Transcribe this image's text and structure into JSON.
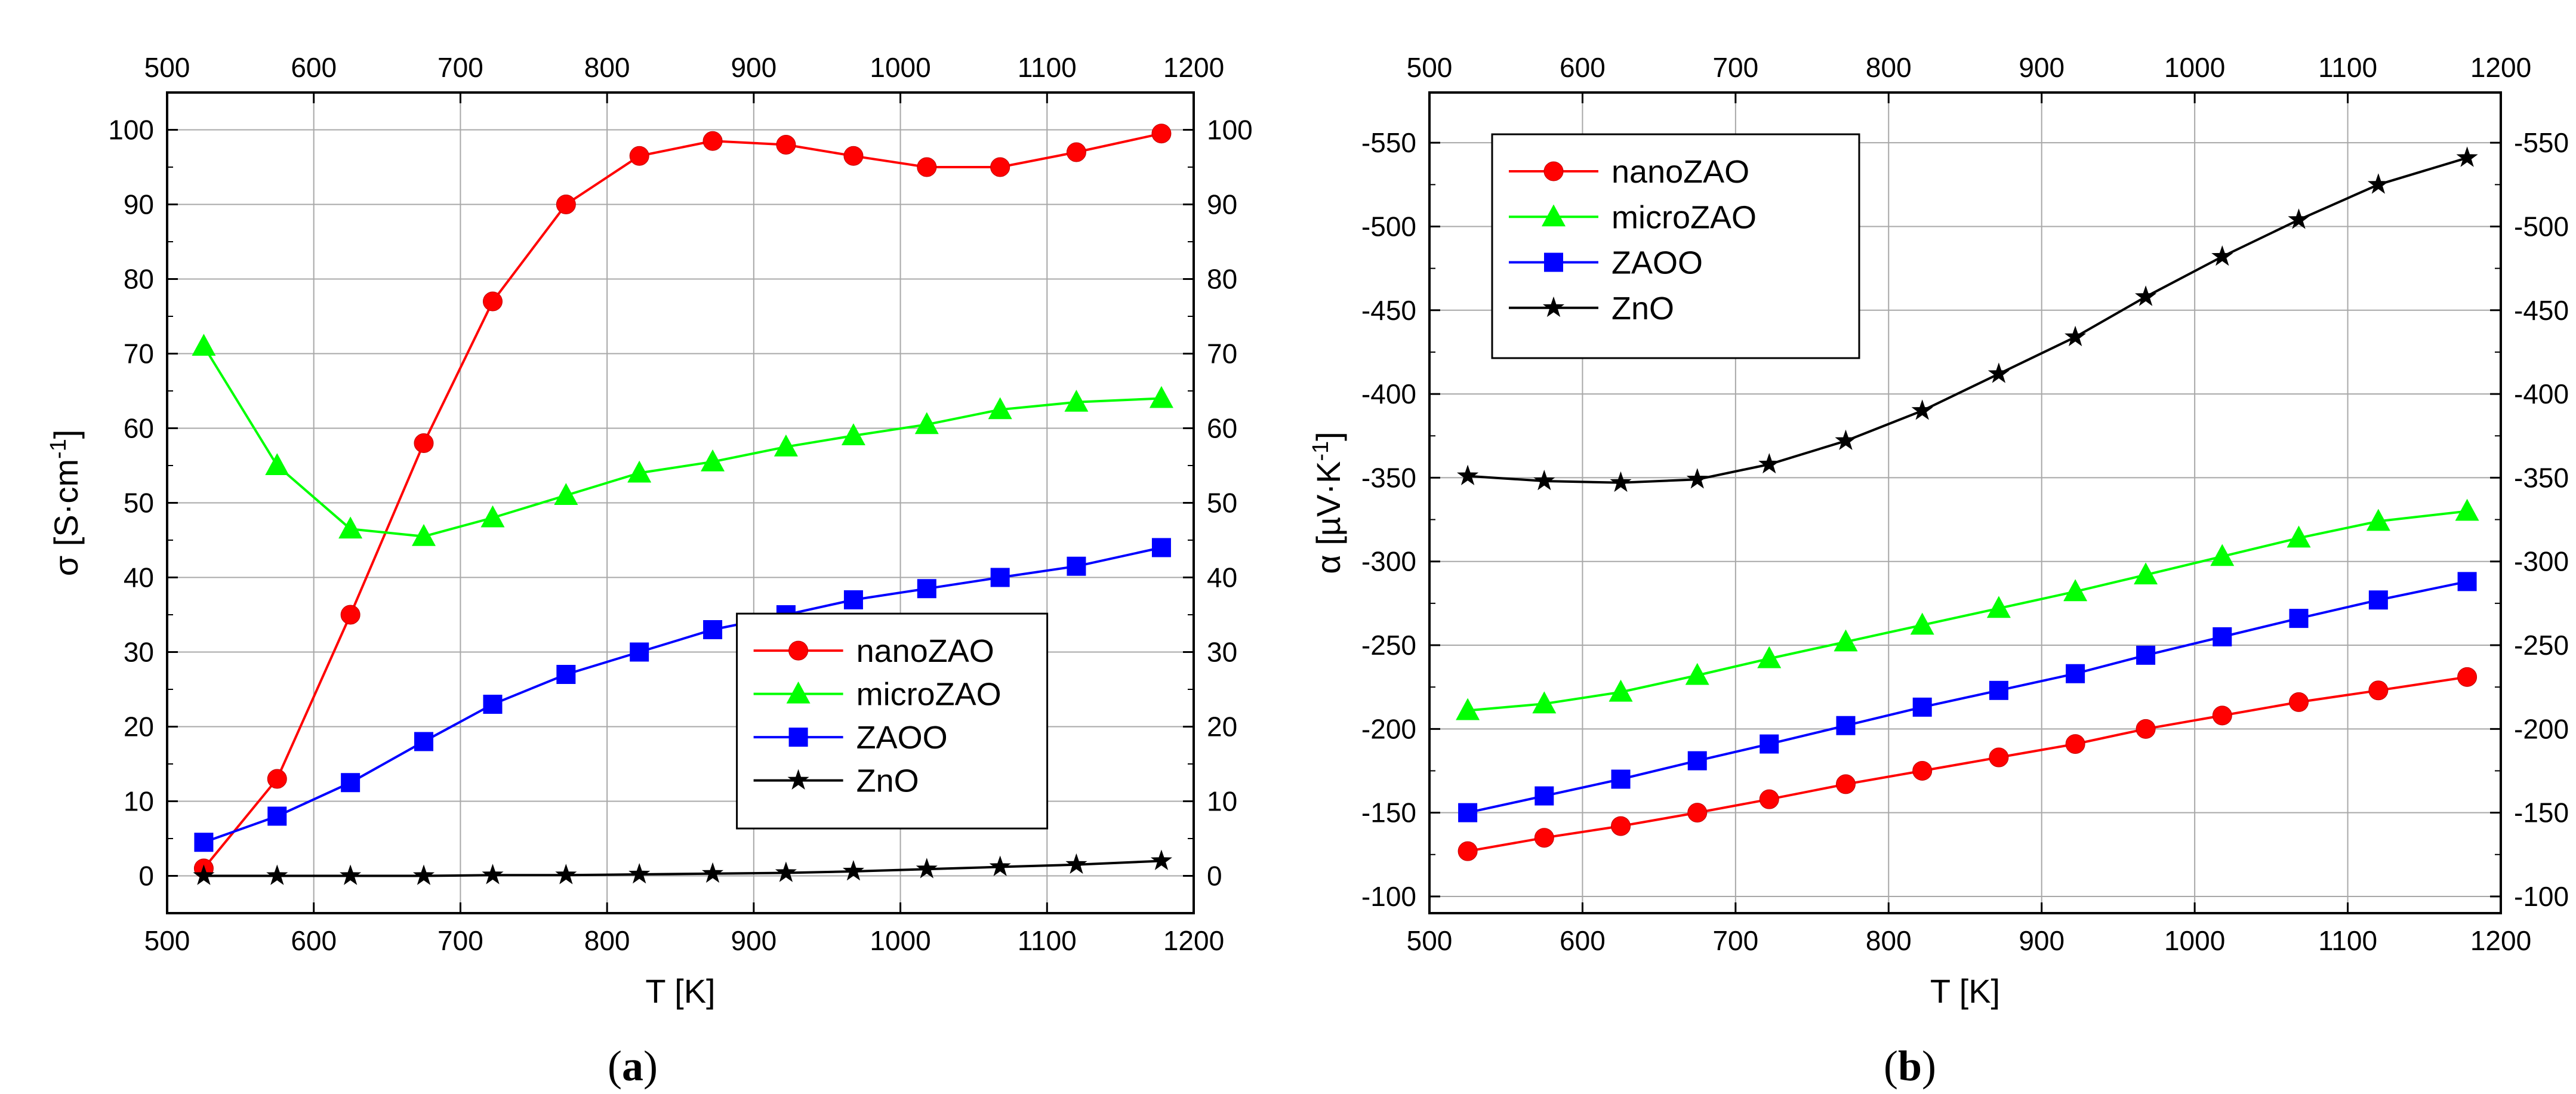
{
  "chart_data": [
    {
      "type": "line",
      "panel_label_parts": [
        "(",
        "a",
        ")"
      ],
      "xlabel": "T [K]",
      "ylabel_base": "σ [S·cm",
      "ylabel_sup": "-1",
      "ylabel_end": "]",
      "xlim": [
        500,
        1200
      ],
      "ylim": [
        -5,
        105
      ],
      "xticks": [
        "500",
        "600",
        "700",
        "800",
        "900",
        "1000",
        "1100",
        "1200"
      ],
      "yticks": [
        "0",
        "10",
        "20",
        "30",
        "40",
        "50",
        "60",
        "70",
        "80",
        "90",
        "100"
      ],
      "y_axis_inverted": false,
      "grid": true,
      "legend_position": "bottom-right",
      "series": [
        {
          "name": "nanoZAO",
          "color": "#ff0000",
          "marker": "circle",
          "x": [
            525,
            575,
            625,
            675,
            722,
            772,
            822,
            872,
            922,
            968,
            1018,
            1068,
            1120,
            1178
          ],
          "y": [
            1,
            13,
            35,
            58,
            77,
            90,
            96.5,
            98.5,
            98,
            96.5,
            95,
            95,
            97,
            99.5
          ]
        },
        {
          "name": "microZAO",
          "color": "#00ff00",
          "marker": "triangle",
          "x": [
            525,
            575,
            625,
            675,
            722,
            772,
            822,
            872,
            922,
            968,
            1018,
            1068,
            1120,
            1178
          ],
          "y": [
            71,
            55,
            46.5,
            45.5,
            48,
            51,
            54,
            55.5,
            57.5,
            59,
            60.5,
            62.5,
            63.5,
            64
          ]
        },
        {
          "name": "ZAOO",
          "color": "#0000ff",
          "marker": "square",
          "x": [
            525,
            575,
            625,
            675,
            722,
            772,
            822,
            872,
            922,
            968,
            1018,
            1068,
            1120,
            1178
          ],
          "y": [
            4.5,
            8,
            12.5,
            18,
            23,
            27,
            30,
            33,
            35,
            37,
            38.5,
            40,
            41.5,
            44
          ]
        },
        {
          "name": "ZnO",
          "color": "#000000",
          "marker": "star",
          "x": [
            525,
            575,
            625,
            675,
            722,
            772,
            822,
            872,
            922,
            968,
            1018,
            1068,
            1120,
            1178
          ],
          "y": [
            0,
            0,
            0,
            0,
            0.1,
            0.1,
            0.2,
            0.3,
            0.4,
            0.6,
            0.9,
            1.2,
            1.5,
            2
          ]
        }
      ]
    },
    {
      "type": "line",
      "panel_label_parts": [
        "(",
        "b",
        ")"
      ],
      "xlabel": "T [K]",
      "ylabel_base": "α [µV·K",
      "ylabel_sup": "-1",
      "ylabel_end": "]",
      "xlim": [
        500,
        1200
      ],
      "ylim": [
        -90,
        -580
      ],
      "xticks": [
        "500",
        "600",
        "700",
        "800",
        "900",
        "1000",
        "1100",
        "1200"
      ],
      "yticks": [
        "-100",
        "-150",
        "-200",
        "-250",
        "-300",
        "-350",
        "-400",
        "-450",
        "-500",
        "-550"
      ],
      "y_axis_inverted": true,
      "grid": true,
      "legend_position": "top-left",
      "series": [
        {
          "name": "nanoZAO",
          "color": "#ff0000",
          "marker": "circle",
          "x": [
            525,
            575,
            625,
            675,
            722,
            772,
            822,
            872,
            922,
            968,
            1018,
            1068,
            1120,
            1178
          ],
          "y": [
            -127,
            -135,
            -142,
            -150,
            -158,
            -167,
            -175,
            -183,
            -191,
            -200,
            -208,
            -216,
            -223,
            -231
          ]
        },
        {
          "name": "microZAO",
          "color": "#00ff00",
          "marker": "triangle",
          "x": [
            525,
            575,
            625,
            675,
            722,
            772,
            822,
            872,
            922,
            968,
            1018,
            1068,
            1120,
            1178
          ],
          "y": [
            -211,
            -215,
            -222,
            -232,
            -242,
            -252,
            -262,
            -272,
            -282,
            -292,
            -303,
            -314,
            -324,
            -330
          ]
        },
        {
          "name": "ZAOO",
          "color": "#0000ff",
          "marker": "square",
          "x": [
            525,
            575,
            625,
            675,
            722,
            772,
            822,
            872,
            922,
            968,
            1018,
            1068,
            1120,
            1178
          ],
          "y": [
            -150,
            -160,
            -170,
            -181,
            -191,
            -202,
            -213,
            -223,
            -233,
            -244,
            -255,
            -266,
            -277,
            -288
          ]
        },
        {
          "name": "ZnO",
          "color": "#000000",
          "marker": "star",
          "x": [
            525,
            575,
            625,
            675,
            722,
            772,
            822,
            872,
            922,
            968,
            1018,
            1068,
            1120,
            1178
          ],
          "y": [
            -351,
            -348,
            -347,
            -349,
            -358,
            -372,
            -390,
            -412,
            -434,
            -458,
            -482,
            -504,
            -525,
            -541
          ]
        }
      ]
    }
  ]
}
